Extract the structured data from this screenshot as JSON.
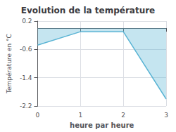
{
  "chart_data": {
    "type": "line",
    "title": "Evolution de la température",
    "xlabel": "heure par heure",
    "ylabel": "Température en °C",
    "x": [
      0,
      1,
      2,
      3
    ],
    "values": [
      -0.48,
      -0.1,
      -0.1,
      -2.0
    ],
    "color": "#5ab4d4",
    "xlim": [
      0,
      3
    ],
    "ylim": [
      -2.2,
      0.2
    ],
    "xticks": [
      0,
      1,
      2,
      3
    ],
    "yticks": [
      0.2,
      -0.6,
      -1.4,
      -2.2
    ],
    "grid": true
  }
}
